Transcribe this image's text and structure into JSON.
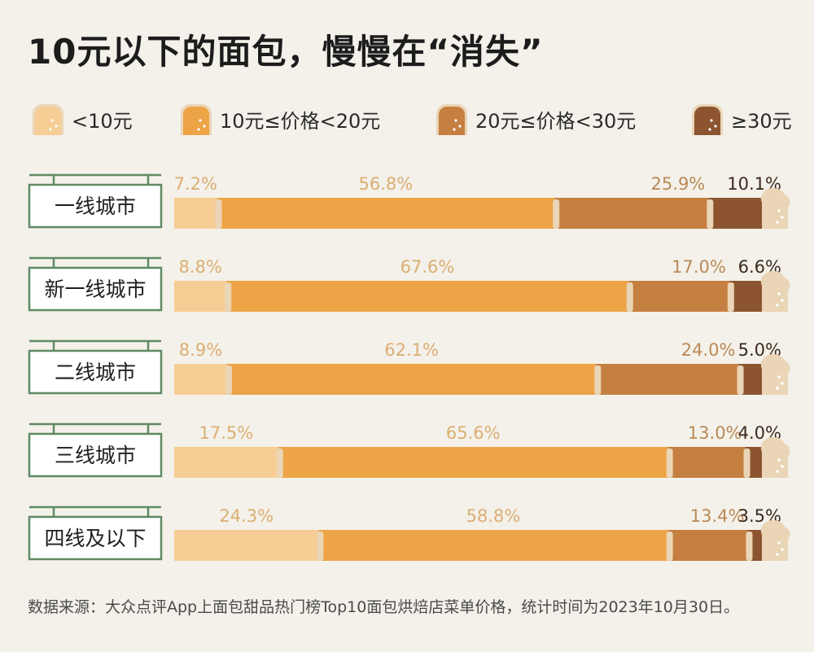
{
  "title": "10元以下的面包，慢慢在“消失”",
  "legend": [
    {
      "label": "<10元",
      "color": "#f6cd94"
    },
    {
      "label": "10元≤价格<20元",
      "color": "#eda446"
    },
    {
      "label": "20元≤价格<30元",
      "color": "#c57f40"
    },
    {
      "label": "≥30元",
      "color": "#8c5530"
    }
  ],
  "footer": "数据来源：大众点评App上面包甜品热门榜Top10面包烘焙店菜单价格，统计时间为2023年10月30日。",
  "colors": {
    "label_text": "#dcae72",
    "board_border": "#5f8a63",
    "board_fill": "#ffffff",
    "bread_crust": "#ead5b6"
  },
  "chart_data": {
    "type": "bar",
    "stacked": true,
    "horizontal": true,
    "title": "10元以下的面包，慢慢在“消失”",
    "categories": [
      "一线城市",
      "新一线城市",
      "二线城市",
      "三线城市",
      "四线及以下"
    ],
    "series": [
      {
        "name": "<10元",
        "values": [
          7.2,
          8.8,
          8.9,
          17.5,
          24.3
        ]
      },
      {
        "name": "10元≤价格<20元",
        "values": [
          56.8,
          67.6,
          62.1,
          65.6,
          58.8
        ]
      },
      {
        "name": "20元≤价格<30元",
        "values": [
          25.9,
          17.0,
          24.0,
          13.0,
          13.4
        ]
      },
      {
        "name": "≥30元",
        "values": [
          10.1,
          6.6,
          5.0,
          4.0,
          3.5
        ]
      }
    ],
    "value_labels": [
      [
        "7.2%",
        "56.8%",
        "25.9%",
        "10.1%"
      ],
      [
        "8.8%",
        "67.6%",
        "17.0%",
        "6.6%"
      ],
      [
        "8.9%",
        "62.1%",
        "24.0%",
        "5.0%"
      ],
      [
        "17.5%",
        "65.6%",
        "13.0%",
        "4.0%"
      ],
      [
        "24.3%",
        "58.8%",
        "13.4%",
        "3.5%"
      ]
    ],
    "unit": "%",
    "xlim": [
      0,
      100
    ]
  }
}
